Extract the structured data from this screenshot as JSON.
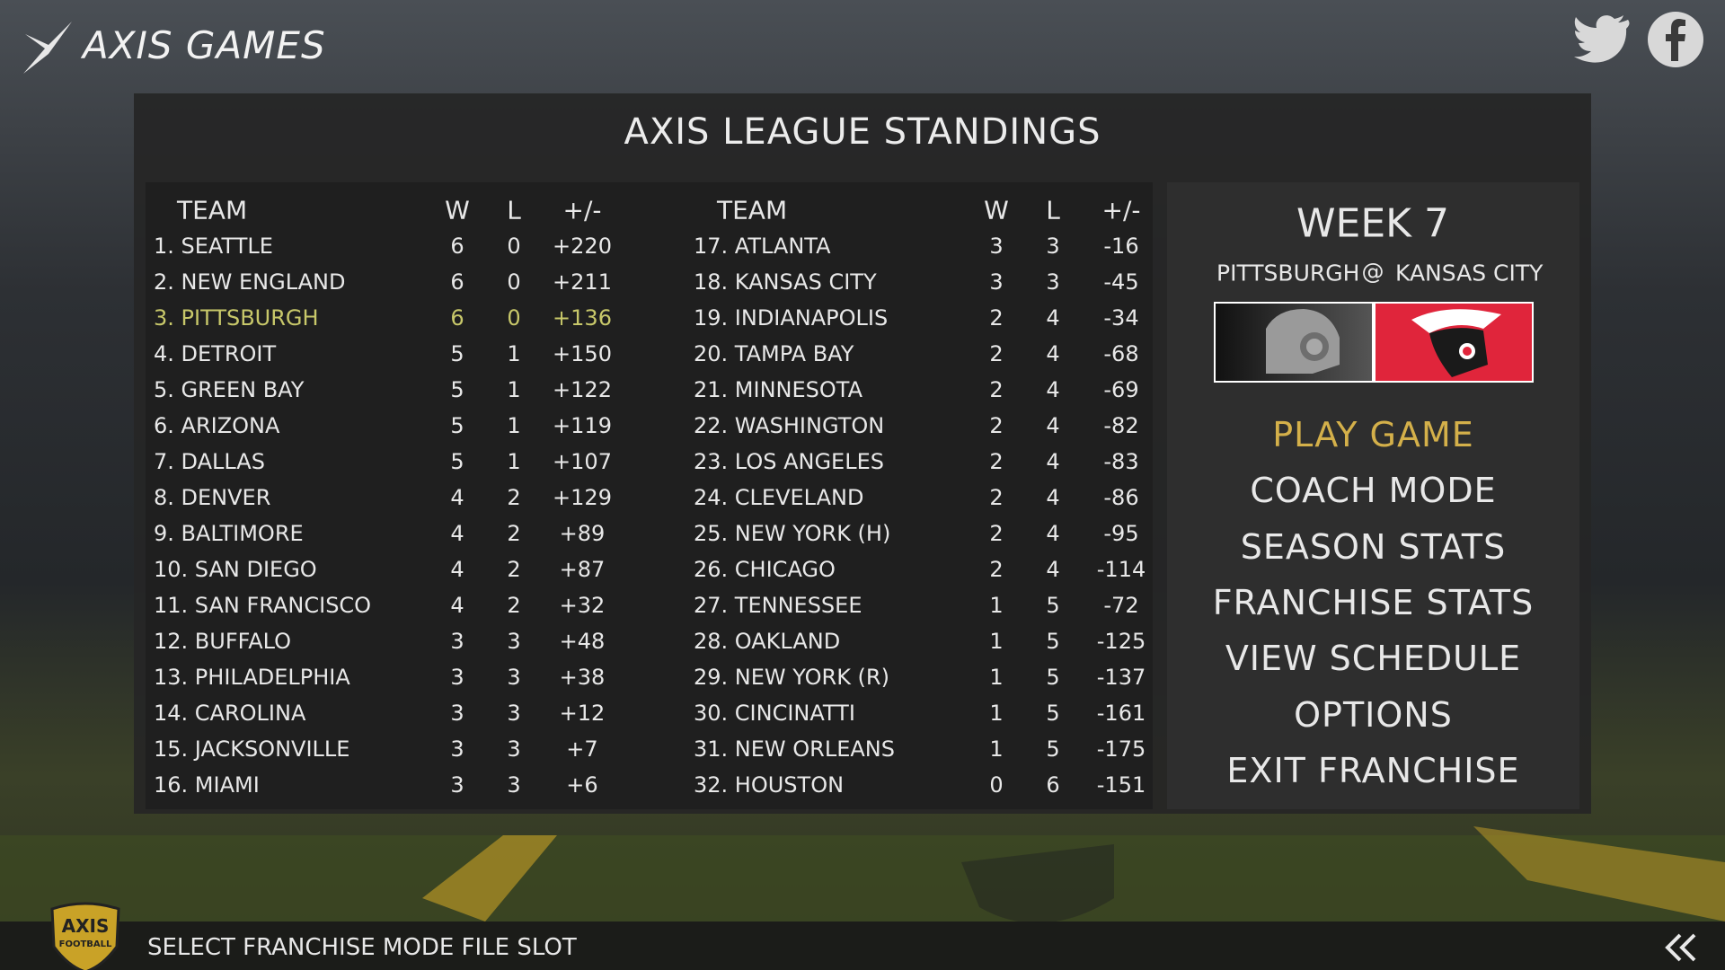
{
  "header": {
    "brand": "AXIS GAMES"
  },
  "standings": {
    "title": "AXIS LEAGUE STANDINGS",
    "columns": [
      "TEAM",
      "W",
      "L",
      "+/-"
    ],
    "left": [
      [
        "1. SEATTLE",
        "6",
        "0",
        "+220"
      ],
      [
        "2. NEW ENGLAND",
        "6",
        "0",
        "+211"
      ],
      [
        "3. PITTSBURGH",
        "6",
        "0",
        "+136"
      ],
      [
        "4. DETROIT",
        "5",
        "1",
        "+150"
      ],
      [
        "5. GREEN BAY",
        "5",
        "1",
        "+122"
      ],
      [
        "6. ARIZONA",
        "5",
        "1",
        "+119"
      ],
      [
        "7. DALLAS",
        "5",
        "1",
        "+107"
      ],
      [
        "8. DENVER",
        "4",
        "2",
        "+129"
      ],
      [
        "9. BALTIMORE",
        "4",
        "2",
        "+89"
      ],
      [
        "10. SAN DIEGO",
        "4",
        "2",
        "+87"
      ],
      [
        "11. SAN FRANCISCO",
        "4",
        "2",
        "+32"
      ],
      [
        "12. BUFFALO",
        "3",
        "3",
        "+48"
      ],
      [
        "13. PHILADELPHIA",
        "3",
        "3",
        "+38"
      ],
      [
        "14. CAROLINA",
        "3",
        "3",
        "+12"
      ],
      [
        "15. JACKSONVILLE",
        "3",
        "3",
        "+7"
      ],
      [
        "16. MIAMI",
        "3",
        "3",
        "+6"
      ]
    ],
    "right": [
      [
        "17. ATLANTA",
        "3",
        "3",
        "-16"
      ],
      [
        "18. KANSAS CITY",
        "3",
        "3",
        "-45"
      ],
      [
        "19. INDIANAPOLIS",
        "2",
        "4",
        "-34"
      ],
      [
        "20. TAMPA BAY",
        "2",
        "4",
        "-68"
      ],
      [
        "21. MINNESOTA",
        "2",
        "4",
        "-69"
      ],
      [
        "22. WASHINGTON",
        "2",
        "4",
        "-82"
      ],
      [
        "23. LOS ANGELES",
        "2",
        "4",
        "-83"
      ],
      [
        "24. CLEVELAND",
        "2",
        "4",
        "-86"
      ],
      [
        "25. NEW YORK (H)",
        "2",
        "4",
        "-95"
      ],
      [
        "26. CHICAGO",
        "2",
        "4",
        "-114"
      ],
      [
        "27. TENNESSEE",
        "1",
        "5",
        "-72"
      ],
      [
        "28. OAKLAND",
        "1",
        "5",
        "-125"
      ],
      [
        "29. NEW YORK (R)",
        "1",
        "5",
        "-137"
      ],
      [
        "30. CINCINATTI",
        "1",
        "5",
        "-161"
      ],
      [
        "31. NEW ORLEANS",
        "1",
        "5",
        "-175"
      ],
      [
        "32. HOUSTON",
        "0",
        "6",
        "-151"
      ]
    ]
  },
  "week_panel": {
    "week": "WEEK 7",
    "home": "PITTSBURGH",
    "at": "@",
    "away": "KANSAS CITY"
  },
  "menu": [
    "PLAY GAME",
    "COACH MODE",
    "SEASON STATS",
    "FRANCHISE STATS",
    "VIEW SCHEDULE",
    "OPTIONS",
    "EXIT FRANCHISE"
  ],
  "footer": {
    "hint": "SELECT FRANCHISE MODE FILE SLOT",
    "badge_top": "AXIS",
    "badge_bottom": "FOOTBALL"
  }
}
